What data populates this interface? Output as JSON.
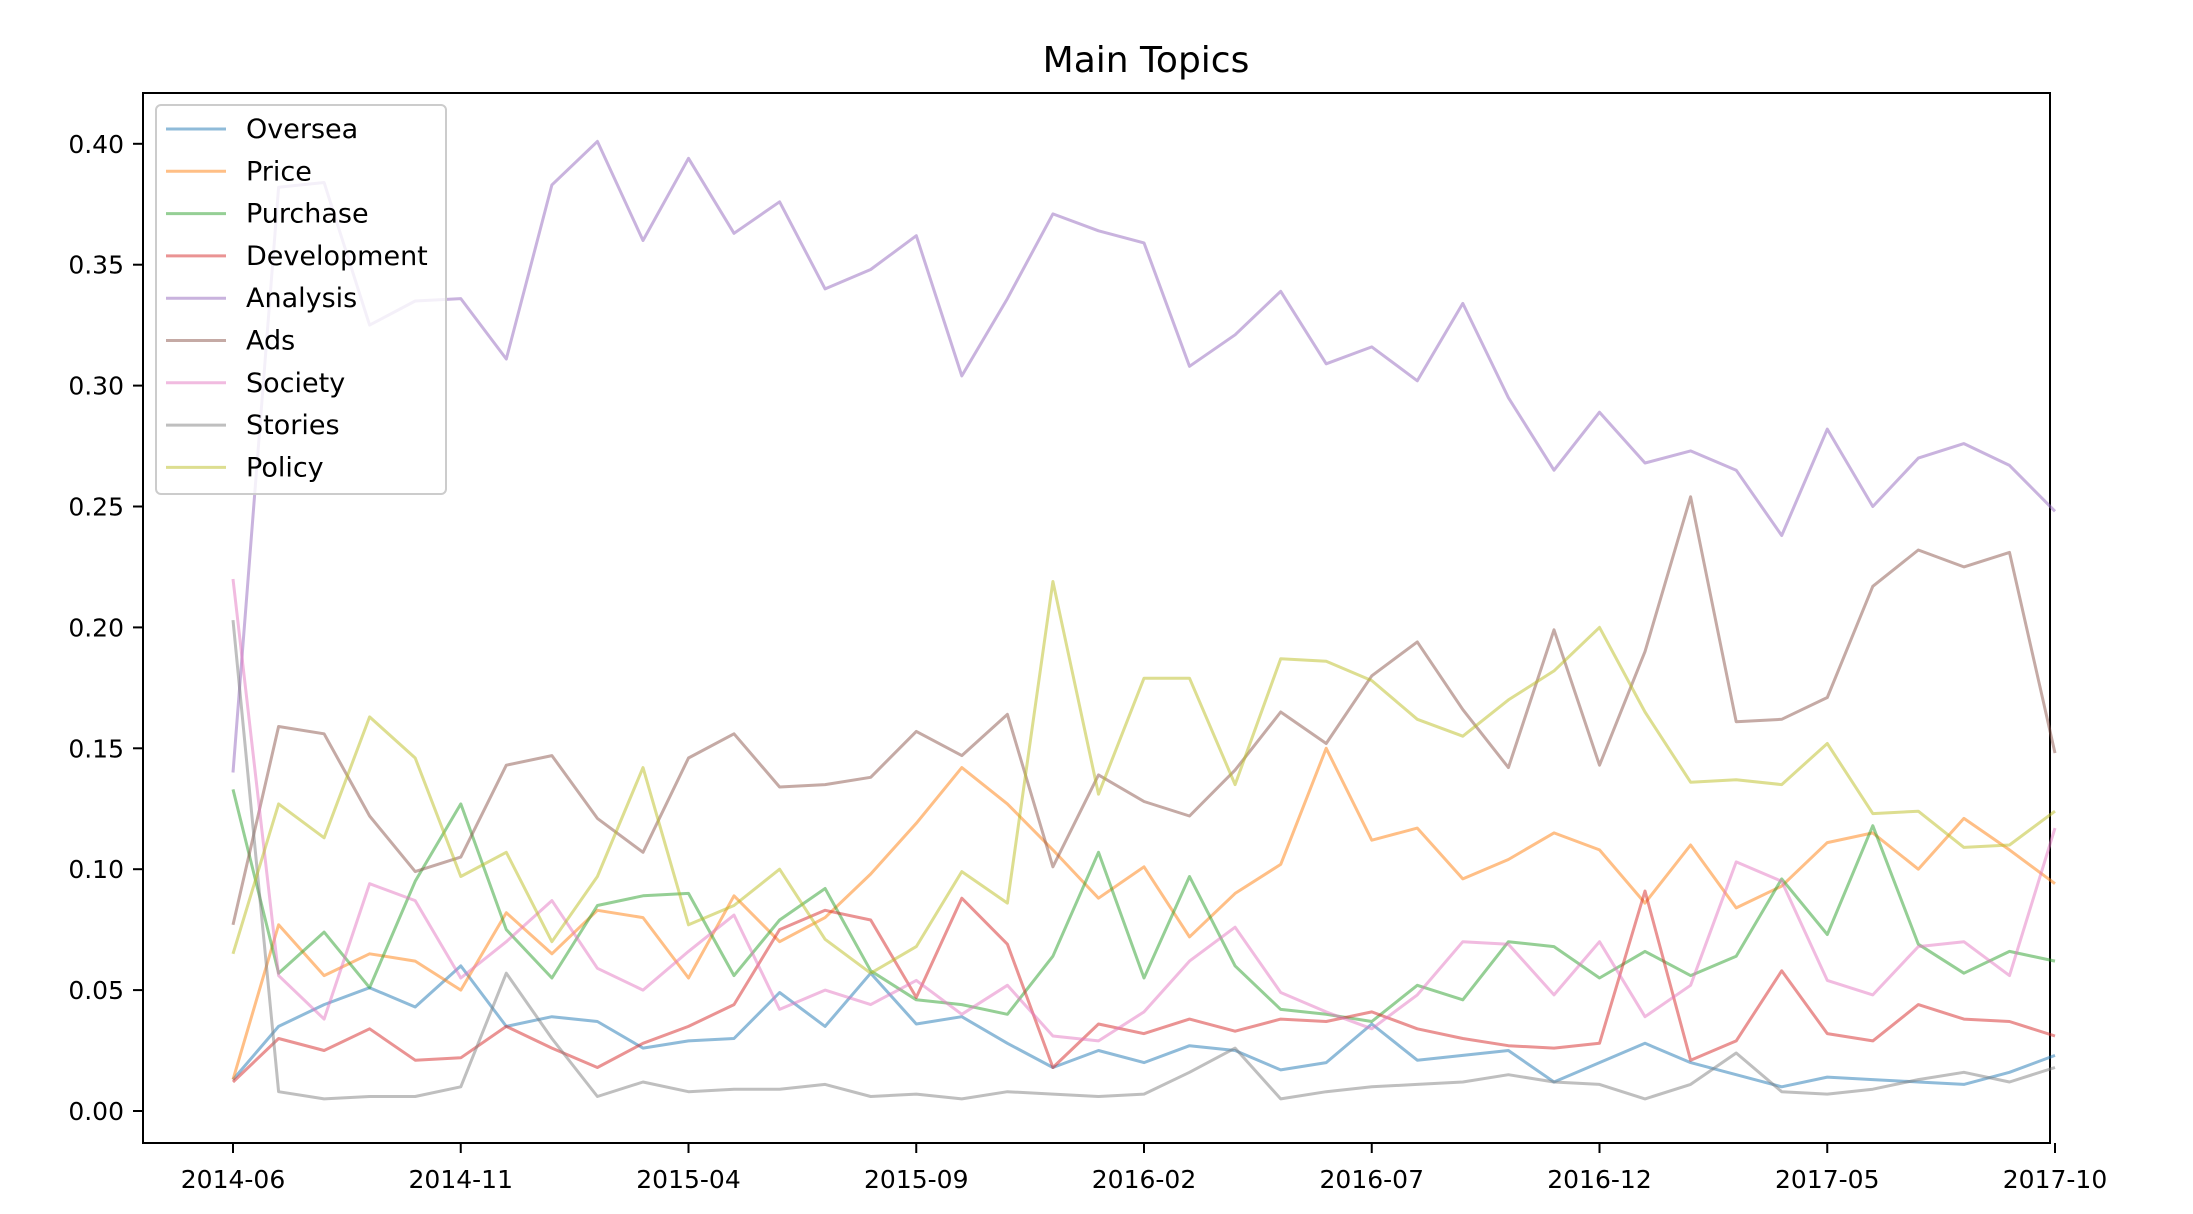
{
  "chart_data": {
    "type": "line",
    "title": "Main Topics",
    "xlabel": "",
    "ylabel": "",
    "x_ticks": [
      "2014-06",
      "2014-11",
      "2015-04",
      "2015-09",
      "2016-02",
      "2016-07",
      "2016-12",
      "2017-05",
      "2017-10"
    ],
    "y_ticks": [
      "0.00",
      "0.05",
      "0.10",
      "0.15",
      "0.20",
      "0.25",
      "0.30",
      "0.35",
      "0.40"
    ],
    "ylim": [
      -0.015,
      0.42
    ],
    "grid": false,
    "legend_position": "upper-left",
    "x": [
      "2014-06",
      "2014-07",
      "2014-08",
      "2014-09",
      "2014-10",
      "2014-11",
      "2014-12",
      "2015-01",
      "2015-02",
      "2015-03",
      "2015-04",
      "2015-05",
      "2015-06",
      "2015-07",
      "2015-08",
      "2015-09",
      "2015-10",
      "2015-11",
      "2015-12",
      "2016-01",
      "2016-02",
      "2016-03",
      "2016-04",
      "2016-05",
      "2016-06",
      "2016-07",
      "2016-08",
      "2016-09",
      "2016-10",
      "2016-11",
      "2016-12",
      "2017-01",
      "2017-02",
      "2017-03",
      "2017-04",
      "2017-05",
      "2017-06",
      "2017-07",
      "2017-08",
      "2017-09",
      "2017-10"
    ],
    "series": [
      {
        "name": "Oversea",
        "color": "#1f77b4",
        "values": [
          0.013,
          0.035,
          0.044,
          0.051,
          0.043,
          0.06,
          0.035,
          0.039,
          0.037,
          0.026,
          0.029,
          0.03,
          0.049,
          0.035,
          0.057,
          0.036,
          0.039,
          0.028,
          0.018,
          0.025,
          0.02,
          0.027,
          0.025,
          0.017,
          0.02,
          0.036,
          0.021,
          0.023,
          0.025,
          0.012,
          0.02,
          0.028,
          0.02,
          0.015,
          0.01,
          0.014,
          0.013,
          0.012,
          0.011,
          0.016,
          0.023
        ]
      },
      {
        "name": "Price",
        "color": "#ff7f0e",
        "values": [
          0.013,
          0.077,
          0.056,
          0.065,
          0.062,
          0.05,
          0.082,
          0.065,
          0.083,
          0.08,
          0.055,
          0.089,
          0.07,
          0.08,
          0.098,
          0.119,
          0.142,
          0.127,
          0.108,
          0.088,
          0.101,
          0.072,
          0.09,
          0.102,
          0.15,
          0.112,
          0.117,
          0.096,
          0.104,
          0.115,
          0.108,
          0.086,
          0.11,
          0.084,
          0.093,
          0.111,
          0.115,
          0.1,
          0.121,
          0.108,
          0.094
        ]
      },
      {
        "name": "Purchase",
        "color": "#2ca02c",
        "values": [
          0.133,
          0.057,
          0.074,
          0.051,
          0.095,
          0.127,
          0.075,
          0.055,
          0.085,
          0.089,
          0.09,
          0.056,
          0.079,
          0.092,
          0.058,
          0.046,
          0.044,
          0.04,
          0.064,
          0.107,
          0.055,
          0.097,
          0.06,
          0.042,
          0.04,
          0.037,
          0.052,
          0.046,
          0.07,
          0.068,
          0.055,
          0.066,
          0.056,
          0.064,
          0.096,
          0.073,
          0.118,
          0.069,
          0.057,
          0.066,
          0.062
        ]
      },
      {
        "name": "Development",
        "color": "#d62728",
        "values": [
          0.012,
          0.03,
          0.025,
          0.034,
          0.021,
          0.022,
          0.035,
          0.026,
          0.018,
          0.028,
          0.035,
          0.044,
          0.075,
          0.083,
          0.079,
          0.047,
          0.088,
          0.069,
          0.018,
          0.036,
          0.032,
          0.038,
          0.033,
          0.038,
          0.037,
          0.041,
          0.034,
          0.03,
          0.027,
          0.026,
          0.028,
          0.091,
          0.021,
          0.029,
          0.058,
          0.032,
          0.029,
          0.044,
          0.038,
          0.037,
          0.031
        ]
      },
      {
        "name": "Analysis",
        "color": "#9467bd",
        "values": [
          0.14,
          0.382,
          0.384,
          0.325,
          0.335,
          0.336,
          0.311,
          0.383,
          0.401,
          0.36,
          0.394,
          0.363,
          0.376,
          0.34,
          0.348,
          0.362,
          0.304,
          0.336,
          0.371,
          0.364,
          0.359,
          0.308,
          0.321,
          0.339,
          0.309,
          0.316,
          0.302,
          0.334,
          0.295,
          0.265,
          0.289,
          0.268,
          0.273,
          0.265,
          0.238,
          0.282,
          0.25,
          0.27,
          0.276,
          0.267,
          0.248
        ]
      },
      {
        "name": "Ads",
        "color": "#8c564b",
        "values": [
          0.077,
          0.159,
          0.156,
          0.122,
          0.099,
          0.105,
          0.143,
          0.147,
          0.121,
          0.107,
          0.146,
          0.156,
          0.134,
          0.135,
          0.138,
          0.157,
          0.147,
          0.164,
          0.101,
          0.139,
          0.128,
          0.122,
          0.141,
          0.165,
          0.152,
          0.18,
          0.194,
          0.166,
          0.142,
          0.199,
          0.143,
          0.19,
          0.254,
          0.161,
          0.162,
          0.171,
          0.217,
          0.232,
          0.225,
          0.231,
          0.148
        ]
      },
      {
        "name": "Society",
        "color": "#e377c2",
        "values": [
          0.22,
          0.056,
          0.038,
          0.094,
          0.087,
          0.055,
          0.07,
          0.087,
          0.059,
          0.05,
          0.066,
          0.081,
          0.042,
          0.05,
          0.044,
          0.054,
          0.04,
          0.052,
          0.031,
          0.029,
          0.041,
          0.062,
          0.076,
          0.049,
          0.041,
          0.034,
          0.048,
          0.07,
          0.069,
          0.048,
          0.07,
          0.039,
          0.052,
          0.103,
          0.095,
          0.054,
          0.048,
          0.068,
          0.07,
          0.056,
          0.117
        ]
      },
      {
        "name": "Stories",
        "color": "#7f7f7f",
        "values": [
          0.203,
          0.008,
          0.005,
          0.006,
          0.006,
          0.01,
          0.057,
          0.03,
          0.006,
          0.012,
          0.008,
          0.009,
          0.009,
          0.011,
          0.006,
          0.007,
          0.005,
          0.008,
          0.007,
          0.006,
          0.007,
          0.016,
          0.026,
          0.005,
          0.008,
          0.01,
          0.011,
          0.012,
          0.015,
          0.012,
          0.011,
          0.005,
          0.011,
          0.024,
          0.008,
          0.007,
          0.009,
          0.013,
          0.016,
          0.012,
          0.018
        ]
      },
      {
        "name": "Policy",
        "color": "#bcbd22",
        "values": [
          0.065,
          0.127,
          0.113,
          0.163,
          0.146,
          0.097,
          0.107,
          0.07,
          0.097,
          0.142,
          0.077,
          0.085,
          0.1,
          0.071,
          0.057,
          0.068,
          0.099,
          0.086,
          0.219,
          0.131,
          0.179,
          0.179,
          0.135,
          0.187,
          0.186,
          0.178,
          0.162,
          0.155,
          0.17,
          0.182,
          0.2,
          0.165,
          0.136,
          0.137,
          0.135,
          0.152,
          0.123,
          0.124,
          0.109,
          0.11,
          0.124
        ]
      }
    ]
  }
}
